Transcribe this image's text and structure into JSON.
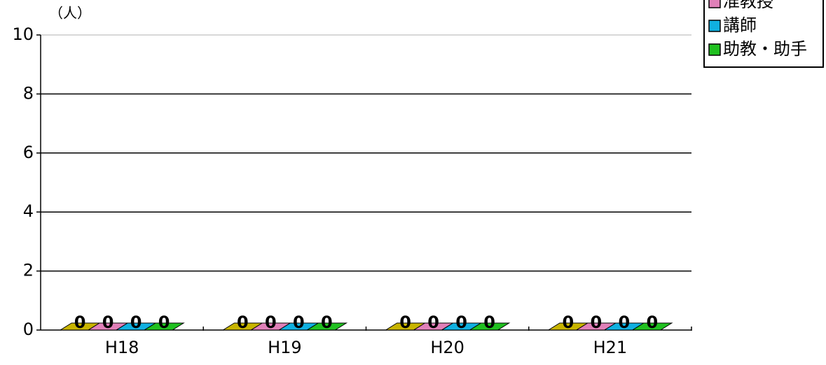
{
  "chart_data": {
    "type": "bar3d",
    "y_label": "（人）",
    "categories": [
      "H18",
      "H19",
      "H20",
      "H21"
    ],
    "series": [
      {
        "name": null,
        "color": "#c8b400",
        "values": [
          0,
          0,
          0,
          0
        ]
      },
      {
        "name": "准教授",
        "color": "#e080b8",
        "values": [
          0,
          0,
          0,
          0
        ]
      },
      {
        "name": "講師",
        "color": "#10b0e0",
        "values": [
          0,
          0,
          0,
          0
        ]
      },
      {
        "name": "助教・助手",
        "color": "#20c020",
        "values": [
          0,
          0,
          0,
          0
        ]
      }
    ],
    "ylim": [
      0,
      10
    ],
    "yticks": [
      0,
      2,
      4,
      6,
      8,
      10
    ],
    "grid": true
  }
}
